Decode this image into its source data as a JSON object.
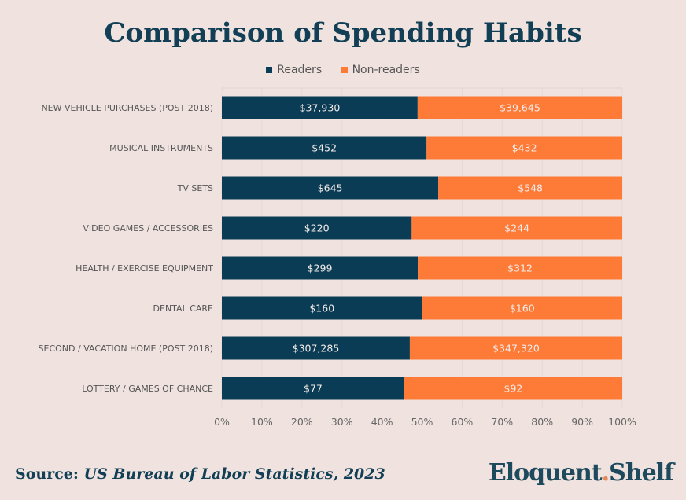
{
  "chart_data": {
    "type": "bar",
    "orientation": "horizontal",
    "stacked": "100%",
    "title": "Comparison of Spending Habits",
    "categories": [
      "NEW VEHICLE PURCHASES (POST 2018)",
      "MUSICAL INSTRUMENTS",
      "TV SETS",
      "VIDEO GAMES / ACCESSORIES",
      "HEALTH / EXERCISE EQUIPMENT",
      "DENTAL CARE",
      "SECOND / VACATION HOME (POST 2018)",
      "LOTTERY / GAMES OF CHANCE"
    ],
    "series": [
      {
        "name": "Readers",
        "color": "#0b3c55",
        "values": [
          37930,
          452,
          645,
          220,
          299,
          160,
          307285,
          77
        ],
        "labels": [
          "$37,930",
          "$452",
          "$645",
          "$220",
          "$299",
          "$160",
          "$307,285",
          "$77"
        ]
      },
      {
        "name": "Non-readers",
        "color": "#fe7a37",
        "values": [
          39645,
          432,
          548,
          244,
          312,
          160,
          347320,
          92
        ],
        "labels": [
          "$39,645",
          "$432",
          "$548",
          "$244",
          "$312",
          "$160",
          "$347,320",
          "$92"
        ]
      }
    ],
    "xticks": [
      "0%",
      "10%",
      "20%",
      "30%",
      "40%",
      "50%",
      "60%",
      "70%",
      "80%",
      "90%",
      "100%"
    ],
    "xlim": [
      0,
      100
    ],
    "legend": "top",
    "grid": true
  },
  "footer": {
    "source_label": "Source:",
    "source_text": "US Bureau of  Labor Statistics, 2023"
  },
  "logo": {
    "part1": "Eloquent",
    "dot": ".",
    "part2": "Shelf"
  }
}
